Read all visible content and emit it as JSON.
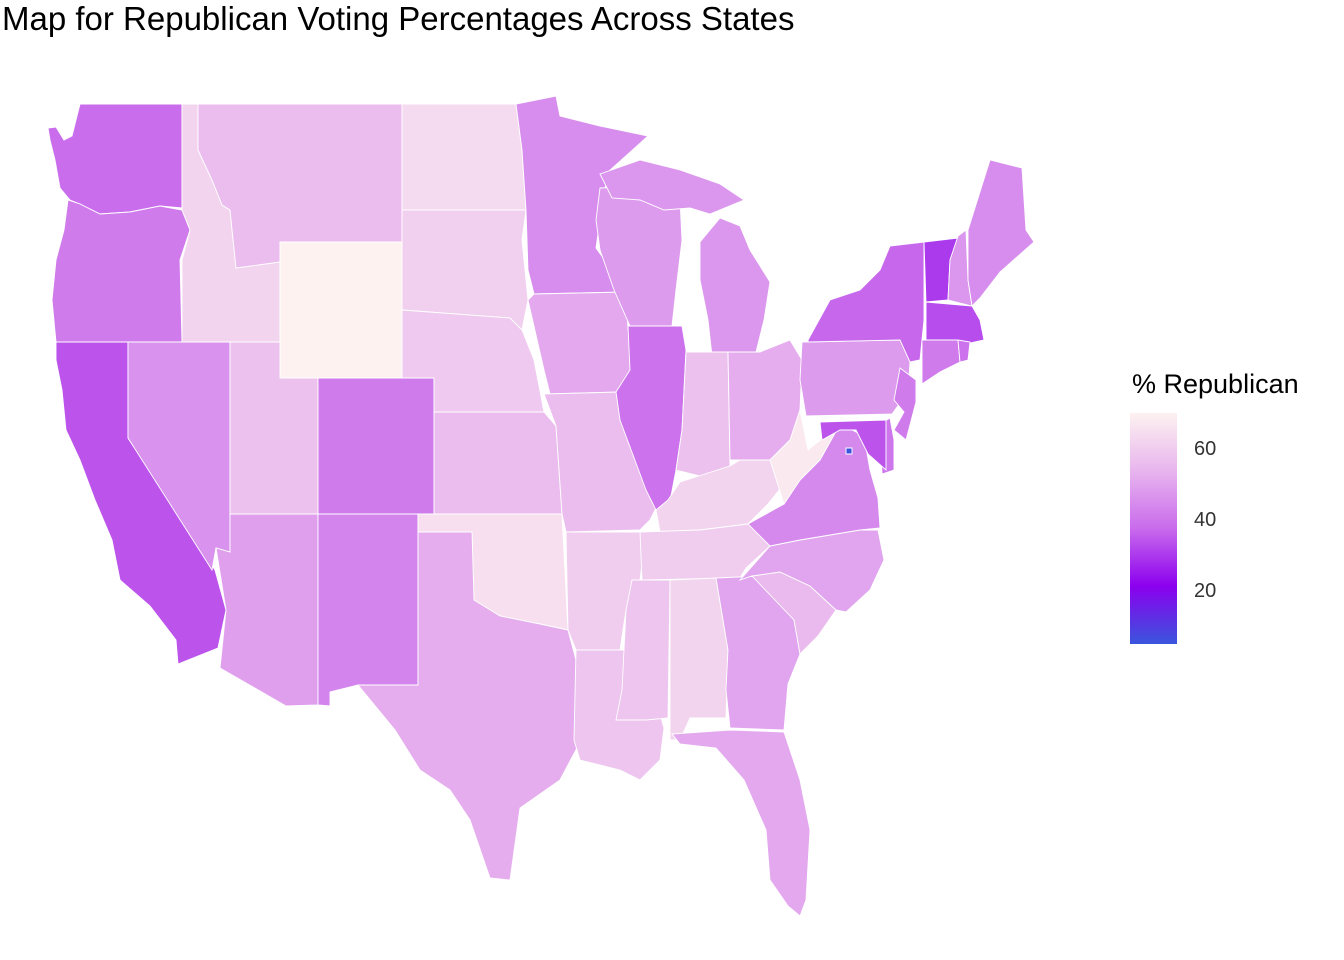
{
  "title": "Map for Republican Voting Percentages Across States",
  "legend": {
    "title": "% Republican",
    "ticks": [
      {
        "value": 60,
        "label": "60"
      },
      {
        "value": 40,
        "label": "40"
      },
      {
        "value": 20,
        "label": "20"
      }
    ],
    "min": 5,
    "max": 70,
    "colors": [
      "#3a55dd",
      "#8b00ee",
      "#c96bec",
      "#e8b5ee",
      "#fdf2f0"
    ]
  },
  "states": [
    {
      "name": "Washington",
      "value": 38
    },
    {
      "name": "Oregon",
      "value": 41
    },
    {
      "name": "California",
      "value": 34
    },
    {
      "name": "Idaho",
      "value": 62
    },
    {
      "name": "Nevada",
      "value": 46
    },
    {
      "name": "Montana",
      "value": 56
    },
    {
      "name": "Wyoming",
      "value": 70
    },
    {
      "name": "Utah",
      "value": 57
    },
    {
      "name": "Arizona",
      "value": 49
    },
    {
      "name": "Colorado",
      "value": 41
    },
    {
      "name": "New Mexico",
      "value": 43
    },
    {
      "name": "North Dakota",
      "value": 64
    },
    {
      "name": "South Dakota",
      "value": 61
    },
    {
      "name": "Nebraska",
      "value": 59
    },
    {
      "name": "Kansas",
      "value": 56
    },
    {
      "name": "Oklahoma",
      "value": 65
    },
    {
      "name": "Texas",
      "value": 52
    },
    {
      "name": "Minnesota",
      "value": 45
    },
    {
      "name": "Iowa",
      "value": 51
    },
    {
      "name": "Missouri",
      "value": 56
    },
    {
      "name": "Arkansas",
      "value": 60
    },
    {
      "name": "Louisiana",
      "value": 58
    },
    {
      "name": "Wisconsin",
      "value": 48
    },
    {
      "name": "Illinois",
      "value": 39
    },
    {
      "name": "Michigan",
      "value": 47
    },
    {
      "name": "Indiana",
      "value": 57
    },
    {
      "name": "Ohio",
      "value": 52
    },
    {
      "name": "Kentucky",
      "value": 62
    },
    {
      "name": "Tennessee",
      "value": 60
    },
    {
      "name": "Mississippi",
      "value": 58
    },
    {
      "name": "Alabama",
      "value": 62
    },
    {
      "name": "Georgia",
      "value": 50
    },
    {
      "name": "Florida",
      "value": 51
    },
    {
      "name": "South Carolina",
      "value": 55
    },
    {
      "name": "North Carolina",
      "value": 50
    },
    {
      "name": "Virginia",
      "value": 44
    },
    {
      "name": "West Virginia",
      "value": 68
    },
    {
      "name": "Pennsylvania",
      "value": 48
    },
    {
      "name": "New York",
      "value": 37
    },
    {
      "name": "Vermont",
      "value": 30
    },
    {
      "name": "New Hampshire",
      "value": 47
    },
    {
      "name": "Maine",
      "value": 45
    },
    {
      "name": "Massachusetts",
      "value": 33
    },
    {
      "name": "Connecticut",
      "value": 41
    },
    {
      "name": "Rhode Island",
      "value": 39
    },
    {
      "name": "New Jersey",
      "value": 41
    },
    {
      "name": "Delaware",
      "value": 40
    },
    {
      "name": "Maryland",
      "value": 34
    },
    {
      "name": "District of Columbia",
      "value": 5
    }
  ]
}
